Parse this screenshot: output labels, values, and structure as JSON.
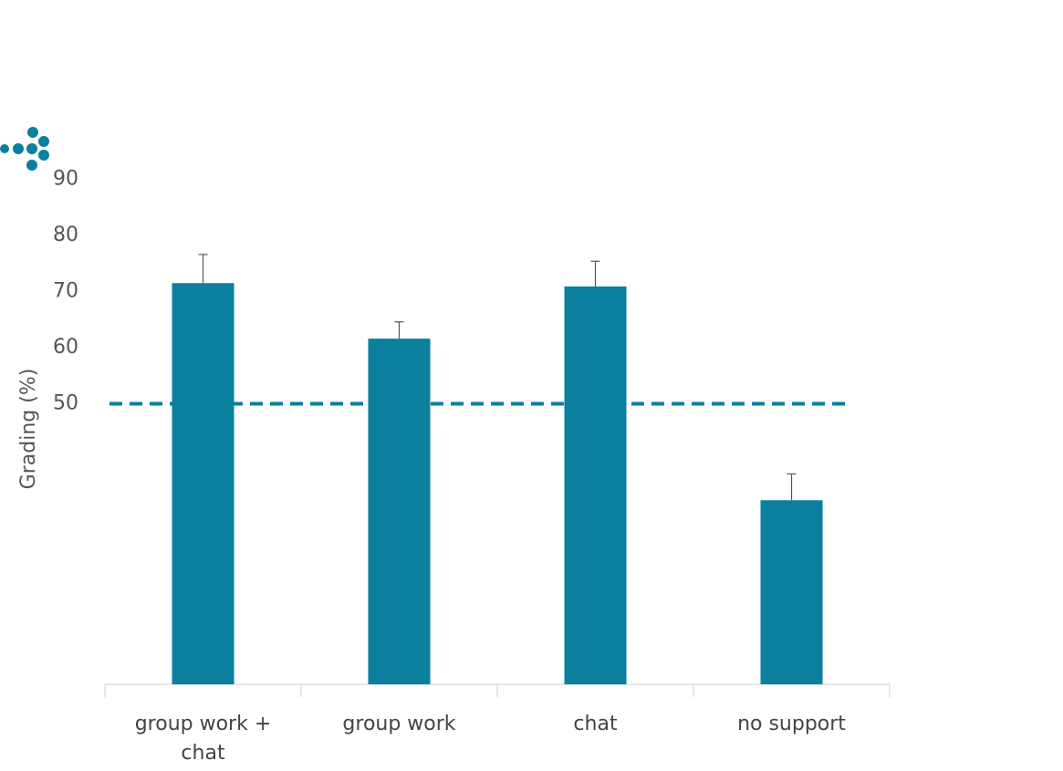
{
  "chart_data": {
    "type": "bar",
    "y_label": "Grading (%)",
    "categories": [
      "group work + chat",
      "group work",
      "chat",
      "no support"
    ],
    "values": [
      71.5,
      61.6,
      70.9,
      32.8
    ],
    "errors": [
      5.1,
      3.0,
      4.5,
      4.7
    ],
    "color": "#0a7f9e",
    "ylim": [
      0,
      100
    ],
    "yticks": [
      50,
      60,
      70,
      80,
      90
    ],
    "reference_line": 50
  }
}
